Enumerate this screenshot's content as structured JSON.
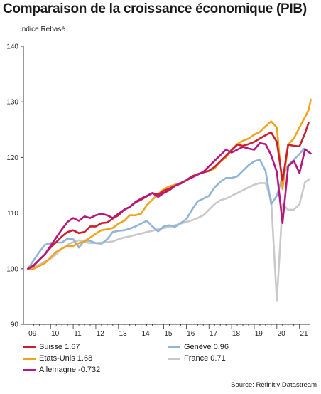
{
  "chart_data": {
    "type": "line",
    "title": "Comparaison de la croissance économique (PIB)",
    "ylabel": "Indice Rebasé",
    "ylim": [
      90,
      140
    ],
    "yticks": [
      90,
      100,
      110,
      120,
      130,
      140
    ],
    "xlim": [
      2008.8,
      2021.45
    ],
    "xticks": [
      {
        "label": "09",
        "x": 2009.2
      },
      {
        "label": "10",
        "x": 2010.2
      },
      {
        "label": "11",
        "x": 2011.2
      },
      {
        "label": "12",
        "x": 2012.2
      },
      {
        "label": "13",
        "x": 2013.2
      },
      {
        "label": "14",
        "x": 2014.2
      },
      {
        "label": "15",
        "x": 2015.2
      },
      {
        "label": "16",
        "x": 2016.2
      },
      {
        "label": "17",
        "x": 2017.2
      },
      {
        "label": "18",
        "x": 2018.2
      },
      {
        "label": "19",
        "x": 2019.2
      },
      {
        "label": "20",
        "x": 2020.2
      },
      {
        "label": "21",
        "x": 2021.2
      }
    ],
    "grid": false,
    "legend_position": "bottom",
    "source": "Source: Refinitiv Datastream",
    "series": [
      {
        "name": "Suisse 1.67",
        "color": "#c8202f",
        "points": [
          [
            2009.0,
            100.0
          ],
          [
            2009.25,
            100.6
          ],
          [
            2009.5,
            101.6
          ],
          [
            2009.75,
            102.6
          ],
          [
            2010.0,
            103.8
          ],
          [
            2010.25,
            104.8
          ],
          [
            2010.5,
            105.8
          ],
          [
            2010.75,
            106.6
          ],
          [
            2011.0,
            106.9
          ],
          [
            2011.25,
            106.4
          ],
          [
            2011.5,
            106.6
          ],
          [
            2011.75,
            107.6
          ],
          [
            2012.0,
            107.6
          ],
          [
            2012.25,
            108.2
          ],
          [
            2012.5,
            108.3
          ],
          [
            2012.75,
            109.0
          ],
          [
            2013.0,
            109.6
          ],
          [
            2013.25,
            110.6
          ],
          [
            2013.5,
            111.1
          ],
          [
            2013.75,
            111.9
          ],
          [
            2014.0,
            112.4
          ],
          [
            2014.25,
            113.0
          ],
          [
            2014.5,
            113.6
          ],
          [
            2014.75,
            113.3
          ],
          [
            2015.0,
            114.0
          ],
          [
            2015.25,
            114.4
          ],
          [
            2015.5,
            114.9
          ],
          [
            2015.75,
            115.3
          ],
          [
            2016.0,
            115.9
          ],
          [
            2016.25,
            116.6
          ],
          [
            2016.5,
            117.0
          ],
          [
            2016.75,
            117.3
          ],
          [
            2017.0,
            117.6
          ],
          [
            2017.25,
            118.3
          ],
          [
            2017.5,
            119.3
          ],
          [
            2017.75,
            120.3
          ],
          [
            2018.0,
            121.3
          ],
          [
            2018.25,
            122.3
          ],
          [
            2018.5,
            122.1
          ],
          [
            2018.75,
            122.4
          ],
          [
            2019.0,
            122.8
          ],
          [
            2019.25,
            123.4
          ],
          [
            2019.5,
            124.0
          ],
          [
            2019.75,
            124.5
          ],
          [
            2020.0,
            122.8
          ],
          [
            2020.25,
            115.8
          ],
          [
            2020.5,
            122.3
          ],
          [
            2020.75,
            122.1
          ],
          [
            2021.0,
            122.0
          ],
          [
            2021.25,
            124.4
          ],
          [
            2021.4,
            126.2
          ]
        ]
      },
      {
        "name": "Etats-Unis 1.68",
        "color": "#f2a31b",
        "points": [
          [
            2009.0,
            100.0
          ],
          [
            2009.25,
            100.0
          ],
          [
            2009.5,
            100.5
          ],
          [
            2009.75,
            101.0
          ],
          [
            2010.0,
            102.0
          ],
          [
            2010.25,
            103.0
          ],
          [
            2010.5,
            103.6
          ],
          [
            2010.75,
            104.1
          ],
          [
            2011.0,
            104.1
          ],
          [
            2011.25,
            104.6
          ],
          [
            2011.5,
            104.9
          ],
          [
            2011.75,
            105.6
          ],
          [
            2012.0,
            106.3
          ],
          [
            2012.25,
            106.9
          ],
          [
            2012.5,
            107.1
          ],
          [
            2012.75,
            107.3
          ],
          [
            2013.0,
            108.1
          ],
          [
            2013.25,
            108.6
          ],
          [
            2013.5,
            109.6
          ],
          [
            2013.75,
            109.6
          ],
          [
            2014.0,
            109.9
          ],
          [
            2014.25,
            111.4
          ],
          [
            2014.5,
            112.4
          ],
          [
            2014.75,
            113.4
          ],
          [
            2015.0,
            114.3
          ],
          [
            2015.25,
            114.8
          ],
          [
            2015.5,
            115.1
          ],
          [
            2015.75,
            115.4
          ],
          [
            2016.0,
            115.9
          ],
          [
            2016.25,
            116.6
          ],
          [
            2016.5,
            117.0
          ],
          [
            2016.75,
            117.4
          ],
          [
            2017.0,
            117.6
          ],
          [
            2017.25,
            118.0
          ],
          [
            2017.5,
            119.3
          ],
          [
            2017.75,
            120.0
          ],
          [
            2018.0,
            121.4
          ],
          [
            2018.25,
            122.4
          ],
          [
            2018.5,
            123.0
          ],
          [
            2018.75,
            123.4
          ],
          [
            2019.0,
            124.1
          ],
          [
            2019.25,
            124.6
          ],
          [
            2019.5,
            125.6
          ],
          [
            2019.75,
            126.5
          ],
          [
            2020.0,
            125.4
          ],
          [
            2020.25,
            114.3
          ],
          [
            2020.5,
            122.3
          ],
          [
            2020.75,
            123.4
          ],
          [
            2021.0,
            125.4
          ],
          [
            2021.25,
            127.3
          ],
          [
            2021.4,
            128.5
          ],
          [
            2021.5,
            130.4
          ]
        ]
      },
      {
        "name": "Allemagne -0.732",
        "color": "#b5177e",
        "points": [
          [
            2009.0,
            100.0
          ],
          [
            2009.25,
            100.5
          ],
          [
            2009.5,
            101.6
          ],
          [
            2009.75,
            102.6
          ],
          [
            2010.0,
            104.1
          ],
          [
            2010.25,
            105.6
          ],
          [
            2010.5,
            107.1
          ],
          [
            2010.75,
            108.4
          ],
          [
            2011.0,
            109.1
          ],
          [
            2011.25,
            108.6
          ],
          [
            2011.5,
            109.4
          ],
          [
            2011.75,
            109.1
          ],
          [
            2012.0,
            109.6
          ],
          [
            2012.25,
            109.9
          ],
          [
            2012.5,
            109.6
          ],
          [
            2012.75,
            109.1
          ],
          [
            2013.0,
            109.9
          ],
          [
            2013.25,
            110.6
          ],
          [
            2013.5,
            111.1
          ],
          [
            2013.75,
            112.0
          ],
          [
            2014.0,
            112.6
          ],
          [
            2014.25,
            113.1
          ],
          [
            2014.5,
            113.6
          ],
          [
            2014.75,
            112.9
          ],
          [
            2015.0,
            113.6
          ],
          [
            2015.25,
            114.1
          ],
          [
            2015.5,
            114.9
          ],
          [
            2015.75,
            115.4
          ],
          [
            2016.0,
            115.9
          ],
          [
            2016.25,
            116.4
          ],
          [
            2016.5,
            116.9
          ],
          [
            2016.75,
            117.4
          ],
          [
            2017.0,
            118.4
          ],
          [
            2017.25,
            119.4
          ],
          [
            2017.5,
            120.4
          ],
          [
            2017.75,
            121.4
          ],
          [
            2018.0,
            120.9
          ],
          [
            2018.25,
            121.4
          ],
          [
            2018.5,
            121.9
          ],
          [
            2018.75,
            121.6
          ],
          [
            2019.0,
            121.4
          ],
          [
            2019.25,
            122.6
          ],
          [
            2019.5,
            122.4
          ],
          [
            2019.75,
            120.4
          ],
          [
            2020.0,
            117.4
          ],
          [
            2020.25,
            108.2
          ],
          [
            2020.5,
            118.4
          ],
          [
            2020.75,
            119.4
          ],
          [
            2021.0,
            117.2
          ],
          [
            2021.25,
            121.5
          ],
          [
            2021.4,
            121.0
          ],
          [
            2021.5,
            120.7
          ]
        ]
      },
      {
        "name": "Genève 0.96",
        "color": "#91b4d9",
        "points": [
          [
            2009.0,
            100.0
          ],
          [
            2009.25,
            101.5
          ],
          [
            2009.5,
            103.0
          ],
          [
            2009.75,
            104.3
          ],
          [
            2010.0,
            104.6
          ],
          [
            2010.25,
            104.7
          ],
          [
            2010.5,
            104.7
          ],
          [
            2010.75,
            105.4
          ],
          [
            2011.0,
            105.3
          ],
          [
            2011.25,
            103.8
          ],
          [
            2011.5,
            105.1
          ],
          [
            2011.75,
            105.0
          ],
          [
            2012.0,
            104.6
          ],
          [
            2012.25,
            104.5
          ],
          [
            2012.5,
            105.3
          ],
          [
            2012.75,
            106.6
          ],
          [
            2013.0,
            106.8
          ],
          [
            2013.25,
            106.9
          ],
          [
            2013.5,
            107.2
          ],
          [
            2013.75,
            107.6
          ],
          [
            2014.0,
            108.1
          ],
          [
            2014.25,
            108.6
          ],
          [
            2014.5,
            107.6
          ],
          [
            2014.75,
            106.7
          ],
          [
            2015.0,
            107.6
          ],
          [
            2015.25,
            107.8
          ],
          [
            2015.5,
            107.5
          ],
          [
            2015.75,
            108.2
          ],
          [
            2016.0,
            108.9
          ],
          [
            2016.25,
            110.6
          ],
          [
            2016.5,
            112.1
          ],
          [
            2016.75,
            112.6
          ],
          [
            2017.0,
            113.1
          ],
          [
            2017.25,
            114.6
          ],
          [
            2017.5,
            115.6
          ],
          [
            2017.75,
            116.3
          ],
          [
            2018.0,
            116.3
          ],
          [
            2018.25,
            116.6
          ],
          [
            2018.5,
            117.6
          ],
          [
            2018.75,
            118.6
          ],
          [
            2019.0,
            119.3
          ],
          [
            2019.25,
            119.6
          ],
          [
            2019.5,
            117.6
          ],
          [
            2019.75,
            111.6
          ],
          [
            2020.0,
            113.1
          ],
          [
            2020.25,
            116.6
          ],
          [
            2020.5,
            118.6
          ],
          [
            2020.75,
            119.6
          ],
          [
            2021.0,
            120.6
          ],
          [
            2021.2,
            121.6
          ]
        ]
      },
      {
        "name": "France 0.71",
        "color": "#c9c9c9",
        "points": [
          [
            2009.0,
            100.0
          ],
          [
            2009.25,
            100.2
          ],
          [
            2009.5,
            100.7
          ],
          [
            2009.75,
            101.3
          ],
          [
            2010.0,
            101.8
          ],
          [
            2010.25,
            102.6
          ],
          [
            2010.5,
            103.6
          ],
          [
            2010.75,
            104.3
          ],
          [
            2011.0,
            104.8
          ],
          [
            2011.25,
            105.1
          ],
          [
            2011.5,
            104.8
          ],
          [
            2011.75,
            104.6
          ],
          [
            2012.0,
            104.6
          ],
          [
            2012.25,
            104.7
          ],
          [
            2012.5,
            104.8
          ],
          [
            2012.75,
            104.9
          ],
          [
            2013.0,
            105.3
          ],
          [
            2013.25,
            105.6
          ],
          [
            2013.5,
            105.8
          ],
          [
            2013.75,
            106.1
          ],
          [
            2014.0,
            106.3
          ],
          [
            2014.25,
            106.6
          ],
          [
            2014.5,
            106.8
          ],
          [
            2014.75,
            107.1
          ],
          [
            2015.0,
            107.3
          ],
          [
            2015.25,
            107.5
          ],
          [
            2015.5,
            107.8
          ],
          [
            2015.75,
            108.1
          ],
          [
            2016.0,
            108.4
          ],
          [
            2016.25,
            108.7
          ],
          [
            2016.5,
            109.1
          ],
          [
            2016.75,
            109.6
          ],
          [
            2017.0,
            110.6
          ],
          [
            2017.25,
            111.6
          ],
          [
            2017.5,
            112.3
          ],
          [
            2017.75,
            112.6
          ],
          [
            2018.0,
            113.1
          ],
          [
            2018.25,
            113.6
          ],
          [
            2018.5,
            114.1
          ],
          [
            2018.75,
            114.6
          ],
          [
            2019.0,
            115.1
          ],
          [
            2019.25,
            115.4
          ],
          [
            2019.5,
            115.4
          ],
          [
            2019.75,
            112.4
          ],
          [
            2020.0,
            94.3
          ],
          [
            2020.25,
            111.6
          ],
          [
            2020.5,
            110.6
          ],
          [
            2020.75,
            110.6
          ],
          [
            2021.0,
            111.6
          ],
          [
            2021.25,
            115.6
          ],
          [
            2021.45,
            116.1
          ]
        ]
      }
    ]
  }
}
